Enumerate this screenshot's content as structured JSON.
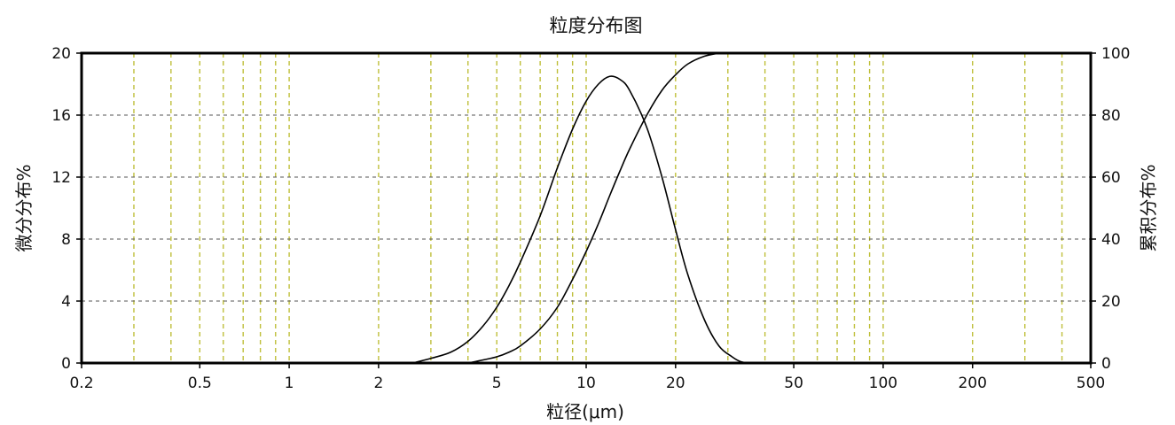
{
  "chart_data": {
    "type": "line",
    "title": "粒度分布图",
    "xlabel": "粒径(μm)",
    "ylabel_left": "微分分布%",
    "ylabel_right": "累积分布%",
    "x_scale": "log",
    "xlim": [
      0.2,
      500
    ],
    "ylim_left": [
      0,
      20
    ],
    "ylim_right": [
      0,
      100
    ],
    "x_tick_labels": [
      "0.2",
      "0.5",
      "1",
      "2",
      "5",
      "10",
      "20",
      "50",
      "100",
      "200",
      "500"
    ],
    "y_left_tick_labels": [
      "0",
      "4",
      "8",
      "12",
      "16",
      "20"
    ],
    "y_right_tick_labels": [
      "0",
      "20",
      "40",
      "60",
      "80",
      "100"
    ],
    "grid": true,
    "grid_color_vertical": "#bfbf3a",
    "grid_color_horizontal": "#555555",
    "series": [
      {
        "axis": "left",
        "x": [
          2.6,
          3.0,
          3.5,
          4.0,
          4.5,
          5.0,
          5.5,
          6.0,
          7.0,
          8.0,
          9.0,
          10.0,
          11.0,
          12.0,
          13.0,
          14.0,
          16.0,
          18.0,
          20.0,
          22.0,
          25.0,
          28.0,
          31.0,
          33.0,
          35.0
        ],
        "y": [
          0.0,
          0.3,
          0.7,
          1.4,
          2.4,
          3.6,
          5.0,
          6.5,
          9.5,
          12.6,
          15.1,
          16.9,
          18.0,
          18.5,
          18.3,
          17.6,
          15.2,
          12.0,
          8.6,
          5.7,
          2.8,
          1.1,
          0.4,
          0.1,
          0.0
        ]
      },
      {
        "axis": "right",
        "x": [
          4.0,
          4.5,
          5.0,
          5.5,
          6.0,
          7.0,
          8.0,
          9.0,
          10.0,
          11.0,
          12.0,
          13.0,
          14.0,
          16.0,
          18.0,
          20.0,
          22.0,
          25.0,
          28.0
        ],
        "y": [
          0.0,
          1.0,
          2.0,
          3.5,
          5.5,
          11.0,
          18.0,
          27.0,
          36.0,
          45.0,
          54.0,
          62.0,
          69.0,
          80.0,
          88.0,
          93.0,
          96.5,
          99.0,
          100.0
        ]
      }
    ]
  }
}
